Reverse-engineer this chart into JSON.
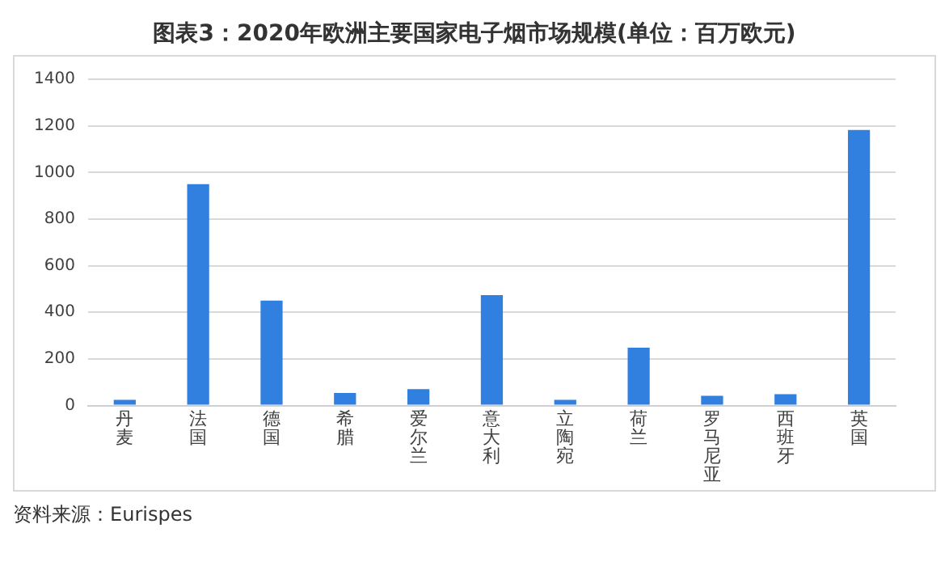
{
  "chart_data": {
    "type": "bar",
    "title": "图表3：2020年欧洲主要国家电子烟市场规模(单位：百万欧元)",
    "categories": [
      "丹麦",
      "法国",
      "德国",
      "希腊",
      "爱尔兰",
      "意大利",
      "立陶宛",
      "荷兰",
      "罗马尼亚",
      "西班牙",
      "英国"
    ],
    "values": [
      25,
      950,
      450,
      54,
      71,
      474,
      25,
      248,
      42,
      49,
      1182
    ],
    "color": "#3180e0",
    "ylim": [
      0,
      1400
    ],
    "yticks": [
      0,
      200,
      400,
      600,
      800,
      1000,
      1200,
      1400
    ],
    "grid": "y",
    "annotations": [
      "资料来源：Eurispes"
    ]
  }
}
